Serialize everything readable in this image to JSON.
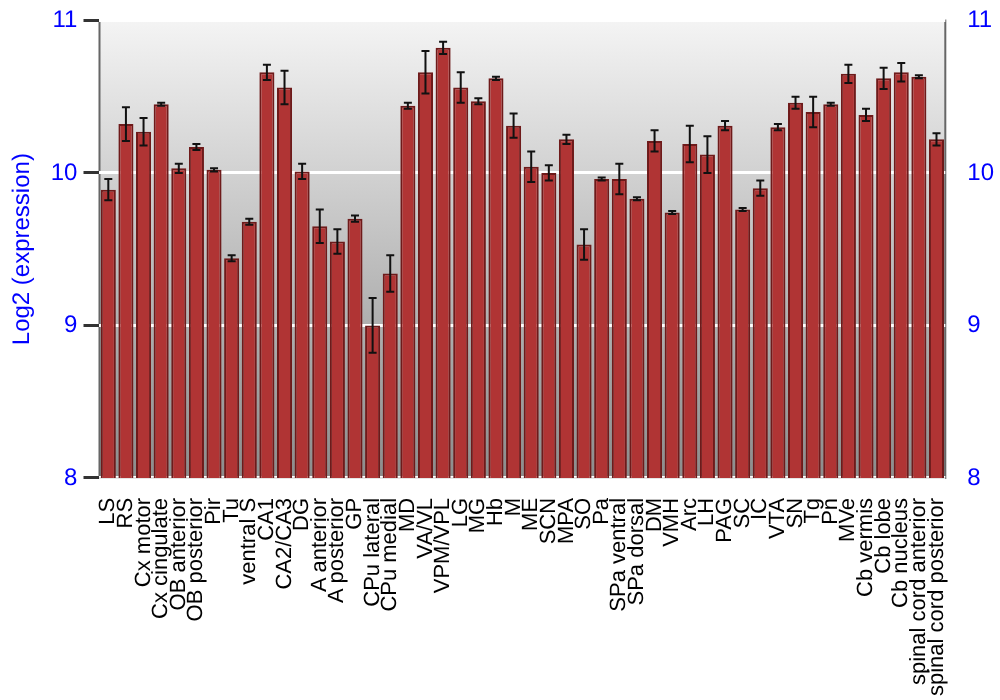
{
  "chart_data": {
    "type": "bar",
    "ylabel": "Log2 (expression)",
    "categories": [
      "LS",
      "RS",
      "Cx motor",
      "Cx cingulate",
      "OB anterior",
      "OB posterior",
      "Pir",
      "Tu",
      "ventral S",
      "CA1",
      "CA2/CA3",
      "DG",
      "A anterior",
      "A posterior",
      "GP",
      "CPu lateral",
      "CPu medial",
      "MD",
      "VA/VL",
      "VPM/VPL",
      "LG",
      "MG",
      "Hb",
      "M",
      "ME",
      "SCN",
      "MPA",
      "SO",
      "Pa",
      "SPa ventral",
      "SPa dorsal",
      "DM",
      "VMH",
      "Arc",
      "LH",
      "PAG",
      "SC",
      "IC",
      "VTA",
      "SN",
      "Tg",
      "Pn",
      "MVe",
      "Cb vermis",
      "Cb lobe",
      "Cb nucleus",
      "spinal cord anterior",
      "spinal cord posterior"
    ],
    "values": [
      9.89,
      10.32,
      10.27,
      10.45,
      10.03,
      10.17,
      10.02,
      9.44,
      9.68,
      10.66,
      10.56,
      10.01,
      9.65,
      9.55,
      9.7,
      9.0,
      9.34,
      10.44,
      10.66,
      10.82,
      10.56,
      10.47,
      10.62,
      10.31,
      10.04,
      10.0,
      10.22,
      9.53,
      9.96,
      9.96,
      9.83,
      10.21,
      9.74,
      10.19,
      10.12,
      10.31,
      9.76,
      9.9,
      10.3,
      10.46,
      10.4,
      10.45,
      10.65,
      10.38,
      10.62,
      10.66,
      10.63,
      10.22
    ],
    "errors": [
      0.07,
      0.11,
      0.09,
      0.01,
      0.03,
      0.02,
      0.01,
      0.02,
      0.02,
      0.05,
      0.11,
      0.05,
      0.11,
      0.08,
      0.02,
      0.18,
      0.12,
      0.02,
      0.14,
      0.04,
      0.1,
      0.02,
      0.01,
      0.08,
      0.1,
      0.05,
      0.03,
      0.1,
      0.01,
      0.1,
      0.01,
      0.07,
      0.01,
      0.12,
      0.12,
      0.03,
      0.01,
      0.05,
      0.02,
      0.04,
      0.1,
      0.01,
      0.06,
      0.04,
      0.07,
      0.06,
      0.01,
      0.04
    ],
    "color": "#b03434",
    "ylim": [
      8,
      11
    ],
    "yticks": [
      8,
      9,
      10,
      11
    ],
    "y2lim": [
      8,
      11
    ],
    "y2ticks": [
      8,
      9,
      10,
      11
    ],
    "grid": "y"
  }
}
